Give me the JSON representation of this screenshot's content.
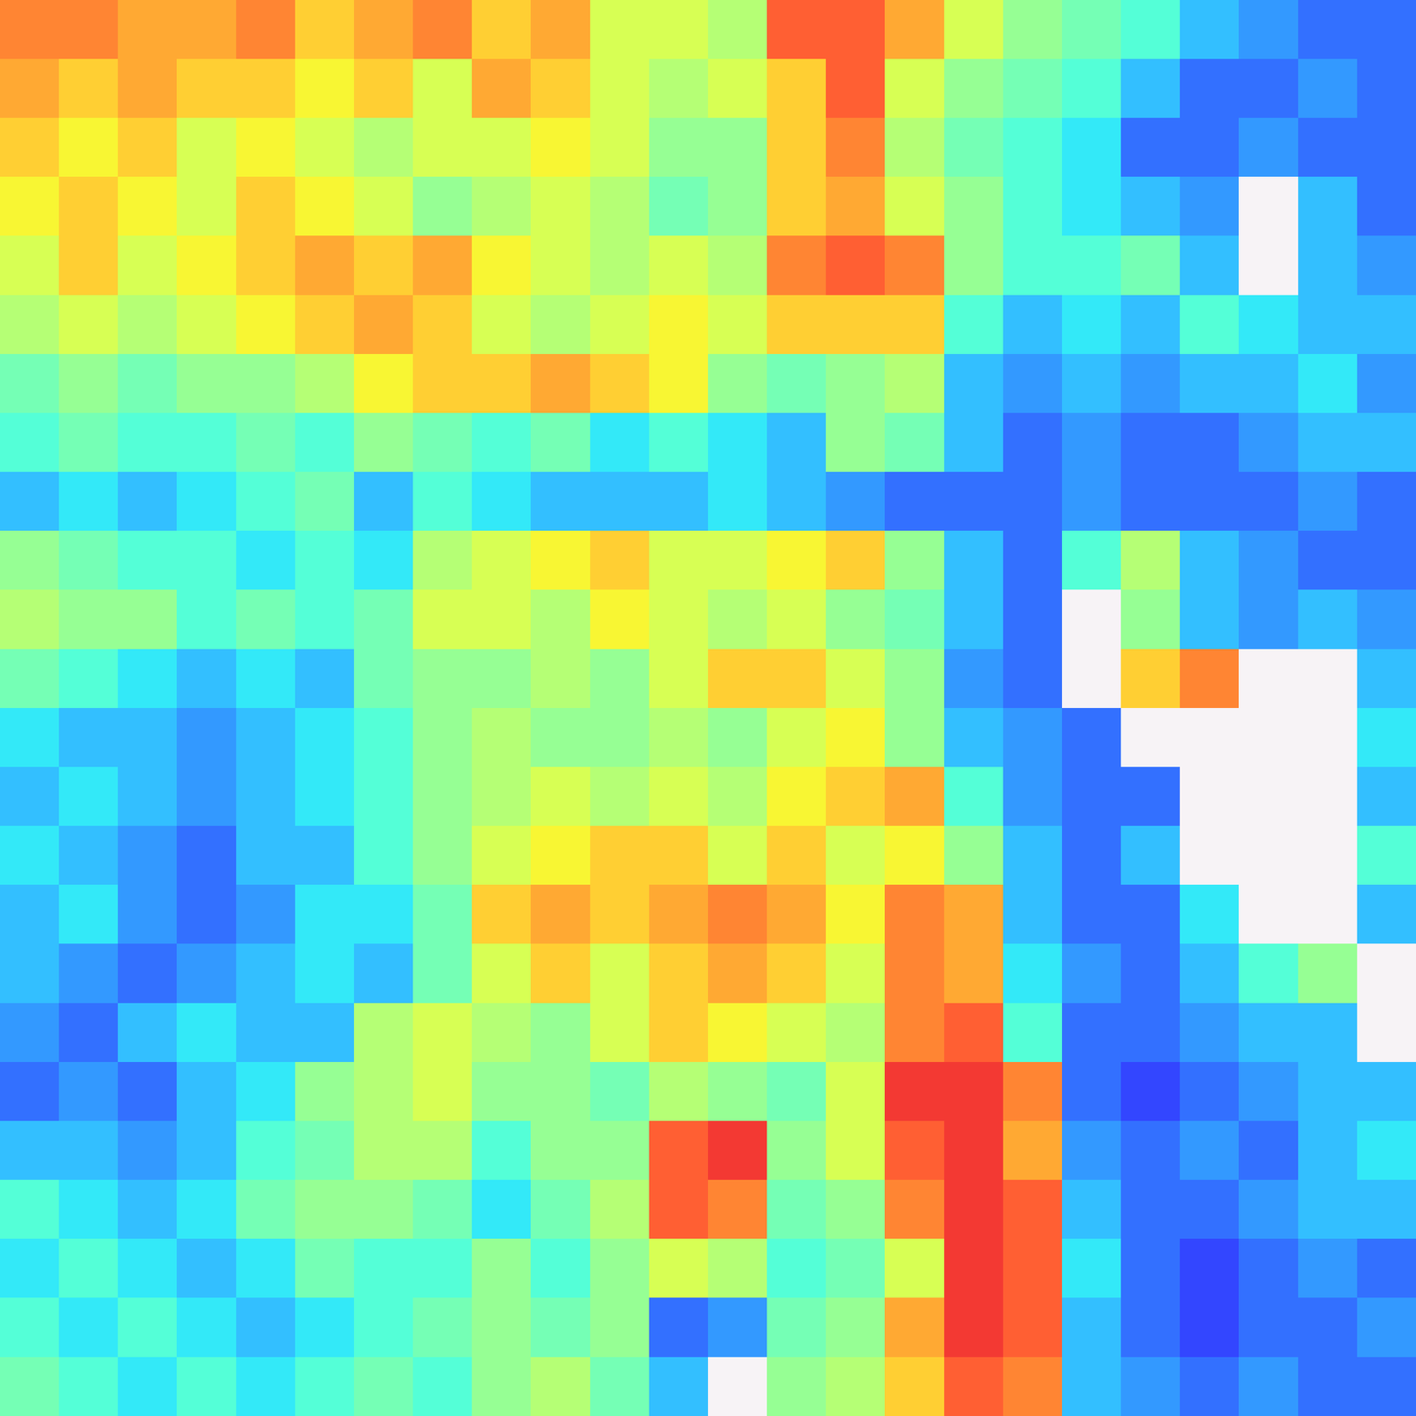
{
  "chart_data": {
    "type": "heatmap",
    "color": "jet",
    "color_range": [
      0,
      1
    ],
    "tick_labels": false,
    "cells": [
      [
        0.8,
        0.8,
        0.75,
        0.75,
        0.8,
        0.7,
        0.75,
        0.8,
        0.7,
        0.75,
        0.6,
        0.6,
        0.55,
        0.85,
        0.85,
        0.75,
        0.6,
        0.5,
        0.45,
        0.4,
        0.3,
        0.25,
        0.2,
        0.2
      ],
      [
        0.75,
        0.7,
        0.75,
        0.7,
        0.7,
        0.65,
        0.7,
        0.6,
        0.75,
        0.7,
        0.6,
        0.55,
        0.6,
        0.7,
        0.85,
        0.6,
        0.5,
        0.45,
        0.4,
        0.3,
        0.2,
        0.2,
        0.25,
        0.2
      ],
      [
        0.7,
        0.65,
        0.7,
        0.6,
        0.65,
        0.6,
        0.55,
        0.6,
        0.6,
        0.65,
        0.6,
        0.5,
        0.5,
        0.7,
        0.8,
        0.55,
        0.45,
        0.4,
        0.35,
        0.2,
        0.2,
        0.25,
        0.2,
        0.2
      ],
      [
        0.65,
        0.7,
        0.65,
        0.6,
        0.7,
        0.65,
        0.6,
        0.5,
        0.55,
        0.6,
        0.55,
        0.45,
        0.5,
        0.7,
        0.75,
        0.6,
        0.5,
        0.4,
        0.35,
        0.3,
        0.25,
        null,
        0.3,
        0.2
      ],
      [
        0.6,
        0.7,
        0.6,
        0.65,
        0.7,
        0.75,
        0.7,
        0.75,
        0.65,
        0.6,
        0.55,
        0.6,
        0.55,
        0.8,
        0.85,
        0.8,
        0.5,
        0.4,
        0.4,
        0.45,
        0.3,
        null,
        0.3,
        0.25
      ],
      [
        0.55,
        0.6,
        0.55,
        0.6,
        0.65,
        0.7,
        0.75,
        0.7,
        0.6,
        0.55,
        0.6,
        0.65,
        0.6,
        0.7,
        0.7,
        0.7,
        0.4,
        0.3,
        0.35,
        0.3,
        0.4,
        0.35,
        0.3,
        0.3
      ],
      [
        0.45,
        0.5,
        0.45,
        0.5,
        0.5,
        0.55,
        0.65,
        0.7,
        0.7,
        0.75,
        0.7,
        0.65,
        0.5,
        0.45,
        0.5,
        0.55,
        0.3,
        0.25,
        0.3,
        0.25,
        0.3,
        0.3,
        0.35,
        0.25
      ],
      [
        0.4,
        0.45,
        0.4,
        0.4,
        0.45,
        0.4,
        0.5,
        0.45,
        0.4,
        0.45,
        0.35,
        0.4,
        0.35,
        0.3,
        0.5,
        0.45,
        0.3,
        0.2,
        0.25,
        0.2,
        0.2,
        0.25,
        0.3,
        0.3
      ],
      [
        0.3,
        0.35,
        0.3,
        0.35,
        0.4,
        0.45,
        0.3,
        0.4,
        0.35,
        0.3,
        0.3,
        0.3,
        0.35,
        0.3,
        0.25,
        0.2,
        0.2,
        0.2,
        0.25,
        0.2,
        0.2,
        0.2,
        0.25,
        0.2
      ],
      [
        0.5,
        0.45,
        0.4,
        0.4,
        0.35,
        0.4,
        0.35,
        0.55,
        0.6,
        0.65,
        0.7,
        0.6,
        0.6,
        0.65,
        0.7,
        0.5,
        0.3,
        0.2,
        0.4,
        0.55,
        0.3,
        0.25,
        0.2,
        0.2
      ],
      [
        0.55,
        0.5,
        0.5,
        0.4,
        0.45,
        0.4,
        0.45,
        0.6,
        0.6,
        0.55,
        0.65,
        0.6,
        0.55,
        0.6,
        0.5,
        0.45,
        0.3,
        0.2,
        null,
        0.5,
        0.3,
        0.25,
        0.3,
        0.25
      ],
      [
        0.45,
        0.4,
        0.35,
        0.3,
        0.35,
        0.3,
        0.45,
        0.5,
        0.5,
        0.55,
        0.5,
        0.6,
        0.7,
        0.7,
        0.6,
        0.5,
        0.25,
        0.2,
        null,
        0.7,
        0.8,
        null,
        null,
        0.3
      ],
      [
        0.35,
        0.3,
        0.3,
        0.25,
        0.3,
        0.35,
        0.4,
        0.5,
        0.55,
        0.5,
        0.5,
        0.55,
        0.5,
        0.6,
        0.65,
        0.5,
        0.3,
        0.25,
        0.2,
        null,
        null,
        null,
        null,
        0.35
      ],
      [
        0.3,
        0.35,
        0.3,
        0.25,
        0.3,
        0.35,
        0.4,
        0.5,
        0.55,
        0.6,
        0.55,
        0.6,
        0.55,
        0.65,
        0.7,
        0.75,
        0.4,
        0.25,
        0.2,
        0.2,
        null,
        null,
        null,
        0.3
      ],
      [
        0.35,
        0.3,
        0.25,
        0.2,
        0.3,
        0.3,
        0.4,
        0.5,
        0.6,
        0.65,
        0.7,
        0.7,
        0.6,
        0.7,
        0.6,
        0.65,
        0.5,
        0.3,
        0.2,
        0.3,
        null,
        null,
        null,
        0.4
      ],
      [
        0.3,
        0.35,
        0.25,
        0.2,
        0.25,
        0.35,
        0.35,
        0.45,
        0.7,
        0.75,
        0.7,
        0.75,
        0.8,
        0.75,
        0.65,
        0.8,
        0.75,
        0.3,
        0.2,
        0.2,
        0.35,
        null,
        null,
        0.3
      ],
      [
        0.3,
        0.25,
        0.2,
        0.25,
        0.3,
        0.35,
        0.3,
        0.45,
        0.6,
        0.7,
        0.6,
        0.7,
        0.75,
        0.7,
        0.6,
        0.8,
        0.75,
        0.35,
        0.25,
        0.2,
        0.3,
        0.4,
        0.5,
        null
      ],
      [
        0.25,
        0.2,
        0.3,
        0.35,
        0.3,
        0.3,
        0.55,
        0.6,
        0.55,
        0.5,
        0.6,
        0.7,
        0.65,
        0.6,
        0.55,
        0.8,
        0.85,
        0.4,
        0.2,
        0.2,
        0.25,
        0.3,
        0.3,
        null
      ],
      [
        0.2,
        0.25,
        0.2,
        0.3,
        0.35,
        0.5,
        0.55,
        0.6,
        0.5,
        0.5,
        0.45,
        0.55,
        0.5,
        0.45,
        0.6,
        0.9,
        0.9,
        0.8,
        0.2,
        0.15,
        0.2,
        0.25,
        0.3,
        0.3
      ],
      [
        0.3,
        0.3,
        0.25,
        0.3,
        0.4,
        0.45,
        0.55,
        0.55,
        0.4,
        0.5,
        0.5,
        0.85,
        0.9,
        0.5,
        0.6,
        0.85,
        0.9,
        0.75,
        0.25,
        0.2,
        0.25,
        0.2,
        0.3,
        0.35
      ],
      [
        0.4,
        0.35,
        0.3,
        0.35,
        0.45,
        0.5,
        0.5,
        0.45,
        0.35,
        0.45,
        0.55,
        0.85,
        0.8,
        0.45,
        0.5,
        0.8,
        0.9,
        0.85,
        0.3,
        0.2,
        0.2,
        0.25,
        0.3,
        0.3
      ],
      [
        0.35,
        0.4,
        0.35,
        0.3,
        0.35,
        0.45,
        0.4,
        0.4,
        0.5,
        0.4,
        0.5,
        0.6,
        0.55,
        0.4,
        0.45,
        0.6,
        0.9,
        0.85,
        0.35,
        0.2,
        0.15,
        0.2,
        0.25,
        0.2
      ],
      [
        0.4,
        0.35,
        0.4,
        0.35,
        0.3,
        0.35,
        0.4,
        0.45,
        0.5,
        0.45,
        0.5,
        0.2,
        0.25,
        0.45,
        0.5,
        0.75,
        0.9,
        0.85,
        0.3,
        0.2,
        0.15,
        0.2,
        0.2,
        0.25
      ],
      [
        0.45,
        0.4,
        0.35,
        0.4,
        0.35,
        0.4,
        0.45,
        0.4,
        0.5,
        0.55,
        0.45,
        0.3,
        null,
        0.5,
        0.55,
        0.7,
        0.85,
        0.8,
        0.3,
        0.25,
        0.2,
        0.25,
        0.2,
        0.2
      ]
    ]
  }
}
